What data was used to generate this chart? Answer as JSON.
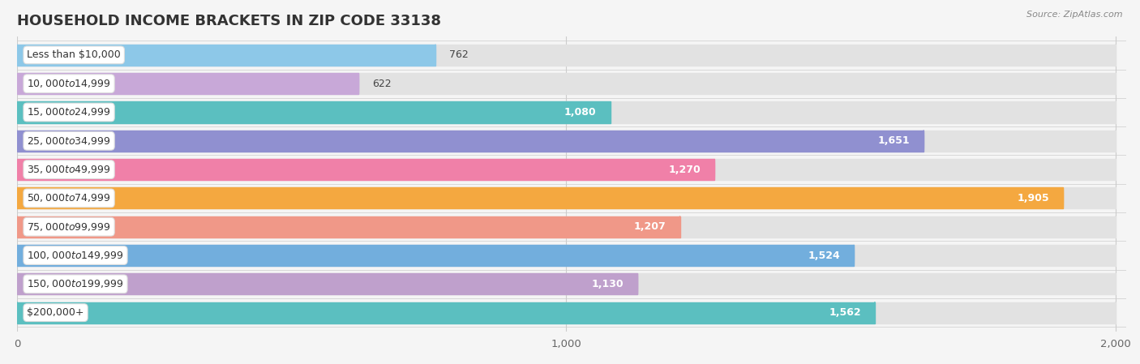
{
  "title": "HOUSEHOLD INCOME BRACKETS IN ZIP CODE 33138",
  "source": "Source: ZipAtlas.com",
  "categories": [
    "Less than $10,000",
    "$10,000 to $14,999",
    "$15,000 to $24,999",
    "$25,000 to $34,999",
    "$35,000 to $49,999",
    "$50,000 to $74,999",
    "$75,000 to $99,999",
    "$100,000 to $149,999",
    "$150,000 to $199,999",
    "$200,000+"
  ],
  "values": [
    762,
    622,
    1080,
    1651,
    1270,
    1905,
    1207,
    1524,
    1130,
    1562
  ],
  "bar_colors": [
    "#8DC8E8",
    "#C8A8D8",
    "#5BBFC0",
    "#9090D0",
    "#F080A8",
    "#F4A840",
    "#F09888",
    "#72AEDD",
    "#BFA0CC",
    "#5BBFC0"
  ],
  "xlim": [
    0,
    2000
  ],
  "xticks": [
    0,
    1000,
    2000
  ],
  "background_color": "#f5f5f5",
  "bar_bg_color": "#e2e2e2",
  "title_fontsize": 13,
  "label_fontsize": 9,
  "value_fontsize": 9
}
